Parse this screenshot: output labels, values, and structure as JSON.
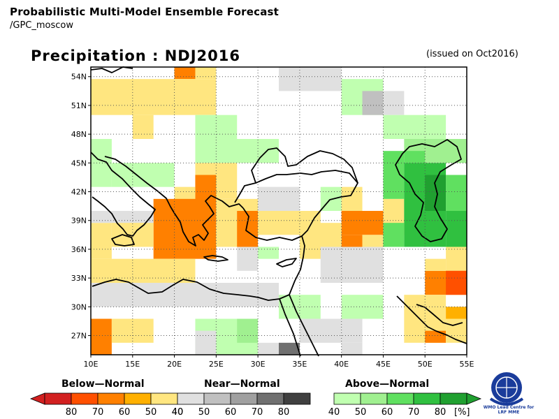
{
  "header": {
    "title": "Probabilistic Multi-Model Ensemble Forecast",
    "subtitle": "/GPC_moscow",
    "map_title": "Precipitation : NDJ2016",
    "issued": "(issued on Oct2016)"
  },
  "map": {
    "lon_range": [
      10,
      55
    ],
    "lat_range": [
      25,
      55
    ],
    "lat_ticks": [
      "54N",
      "51N",
      "48N",
      "45N",
      "42N",
      "39N",
      "36N",
      "33N",
      "30N",
      "27N"
    ],
    "lat_values": [
      54,
      51,
      48,
      45,
      42,
      39,
      36,
      33,
      30,
      27
    ],
    "lon_ticks": [
      "10E",
      "15E",
      "20E",
      "25E",
      "30E",
      "35E",
      "40E",
      "45E",
      "50E",
      "55E"
    ],
    "lon_values": [
      10,
      15,
      20,
      25,
      30,
      35,
      40,
      45,
      50,
      55
    ],
    "grid": "dotted",
    "cell_size_deg": 2.5
  },
  "legend": {
    "below_title": "Below—Normal",
    "near_title": "Near—Normal",
    "above_title": "Above—Normal",
    "below_labels": [
      "80",
      "70",
      "60",
      "50",
      "40"
    ],
    "near_labels": [
      "40",
      "50",
      "60",
      "70",
      "80"
    ],
    "above_labels": [
      "40",
      "50",
      "60",
      "70",
      "80"
    ],
    "unit": "[%]",
    "below_colors": [
      "#d22020",
      "#ff5000",
      "#ff8000",
      "#ffb000",
      "#ffe680"
    ],
    "near_colors": [
      "#e0e0e0",
      "#c0c0c0",
      "#a0a0a0",
      "#707070",
      "#404040"
    ],
    "above_colors": [
      "#c0ffb0",
      "#a0f090",
      "#60e060",
      "#30c040",
      "#20a030"
    ]
  },
  "logo": {
    "name": "wmo-emblem-icon",
    "caption": "WMO Lead Centre for LRF MME"
  }
}
